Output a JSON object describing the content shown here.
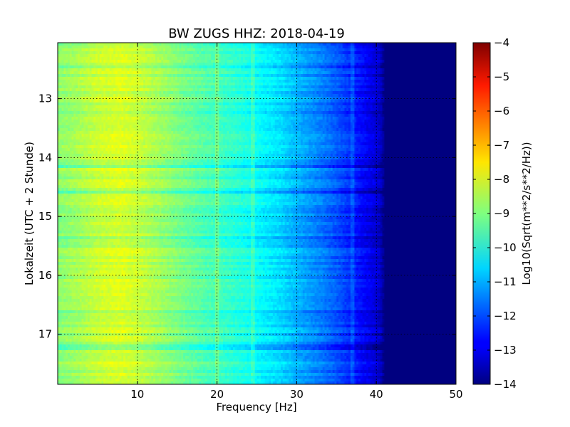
{
  "chart_data": {
    "type": "heatmap",
    "title": "BW ZUGS HHZ: 2018-04-19",
    "xlabel": "Frequency [Hz]",
    "ylabel": "Lokalzeit (UTC + 2 Stunde)",
    "xlim": [
      0,
      50
    ],
    "ylim": [
      12.05,
      17.85
    ],
    "y_inverted": true,
    "grid": true,
    "x_ticks": [
      10,
      20,
      30,
      40,
      50
    ],
    "y_ticks": [
      13,
      14,
      15,
      16,
      17
    ],
    "colorbar": {
      "label": "Log10(Sqrt(m**2/s**2/Hz))",
      "range": [
        -14,
        -4
      ],
      "ticks": [
        -4,
        -5,
        -6,
        -7,
        -8,
        -9,
        -10,
        -11,
        -12,
        -13,
        -14
      ],
      "colormap": "jet"
    },
    "spectrum_profile": {
      "frequency_hz": [
        0,
        2,
        5,
        8,
        10,
        13,
        15,
        18,
        20,
        23,
        25,
        28,
        30,
        33,
        35,
        37,
        39,
        40.5,
        41,
        45,
        50
      ],
      "log_psd": [
        -8.9,
        -8.7,
        -8.3,
        -8.1,
        -8.3,
        -8.7,
        -9.0,
        -9.4,
        -9.6,
        -9.9,
        -10.2,
        -10.6,
        -11.0,
        -11.5,
        -11.9,
        -12.4,
        -12.9,
        -13.3,
        -14.0,
        -14.0,
        -14.0
      ]
    },
    "line_features": [
      {
        "frequency_hz": 20,
        "type": "intermittent line"
      },
      {
        "frequency_hz": 24.5,
        "type": "persistent line"
      },
      {
        "frequency_hz": 37,
        "type": "persistent line"
      }
    ]
  }
}
